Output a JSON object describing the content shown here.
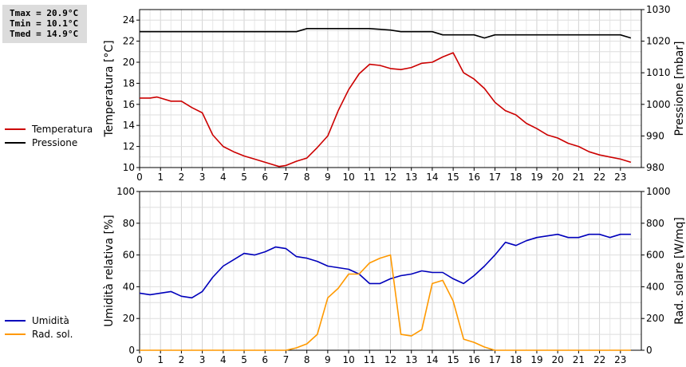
{
  "stats": {
    "tmax": "Tmax = 20.9°C",
    "tmin": "Tmin = 10.1°C",
    "tmed": "Tmed = 14.9°C"
  },
  "chart_data": [
    {
      "type": "line",
      "ylabel": "Temperatura [°C]",
      "y2label": "Pressione [mbar]",
      "x_ticks": [
        "0",
        "1",
        "2",
        "3",
        "4",
        "5",
        "6",
        "7",
        "8",
        "9",
        "10",
        "11",
        "12",
        "13",
        "14",
        "15",
        "16",
        "17",
        "18",
        "19",
        "20",
        "21",
        "22",
        "23"
      ],
      "y_ticks": [
        "10",
        "12",
        "14",
        "16",
        "18",
        "20",
        "22",
        "24"
      ],
      "y2_ticks": [
        "980",
        "990",
        "1000",
        "1010",
        "1020",
        "1030"
      ],
      "xlim": [
        0,
        24
      ],
      "ylim": [
        10,
        25
      ],
      "y2lim": [
        980,
        1030
      ],
      "grid": true,
      "series": [
        {
          "name": "Temperatura",
          "axis": "left",
          "color": "#cc0000",
          "x": [
            0,
            0.5,
            0.83,
            1,
            1.5,
            2,
            2.5,
            3,
            3.5,
            4,
            4.5,
            5,
            5.5,
            6,
            6.5,
            6.67,
            7,
            7.5,
            8,
            8.5,
            9,
            9.5,
            10,
            10.5,
            11,
            11.5,
            12,
            12.5,
            13,
            13.5,
            14,
            14.5,
            15,
            15.5,
            16,
            16.5,
            17,
            17.5,
            18,
            18.5,
            19,
            19.5,
            20,
            20.5,
            21,
            21.5,
            22,
            22.5,
            23,
            23.5
          ],
          "values": [
            16.6,
            16.6,
            16.7,
            16.6,
            16.3,
            16.3,
            15.7,
            15.2,
            13.1,
            12.0,
            11.5,
            11.1,
            10.8,
            10.5,
            10.2,
            10.1,
            10.2,
            10.6,
            10.9,
            11.9,
            13.0,
            15.4,
            17.4,
            18.9,
            19.8,
            19.7,
            19.4,
            19.3,
            19.5,
            19.9,
            20.0,
            20.5,
            20.9,
            19.0,
            18.4,
            17.5,
            16.2,
            15.4,
            15.0,
            14.2,
            13.7,
            13.1,
            12.8,
            12.3,
            12.0,
            11.5,
            11.2,
            11.0,
            10.8,
            10.5
          ]
        },
        {
          "name": "Pressione",
          "axis": "right",
          "color": "#000000",
          "x": [
            0,
            7.5,
            8,
            11,
            12,
            12.5,
            14,
            14.5,
            16,
            16.5,
            17,
            23,
            23.5
          ],
          "values": [
            1023,
            1023,
            1024,
            1024,
            1023.5,
            1023,
            1023,
            1022,
            1022,
            1021,
            1022,
            1022,
            1021
          ]
        }
      ]
    },
    {
      "type": "line",
      "ylabel": "Umidità relativa [%]",
      "y2label": "Rad. solare [W/mq]",
      "x_ticks": [
        "0",
        "1",
        "2",
        "3",
        "4",
        "5",
        "6",
        "7",
        "8",
        "9",
        "10",
        "11",
        "12",
        "13",
        "14",
        "15",
        "16",
        "17",
        "18",
        "19",
        "20",
        "21",
        "22",
        "23"
      ],
      "y_ticks": [
        "0",
        "20",
        "40",
        "60",
        "80",
        "100"
      ],
      "y2_ticks": [
        "0",
        "200",
        "400",
        "600",
        "800",
        "1000"
      ],
      "xlim": [
        0,
        24
      ],
      "ylim": [
        0,
        100
      ],
      "y2lim": [
        0,
        1000
      ],
      "grid": true,
      "series": [
        {
          "name": "Umidità",
          "axis": "left",
          "color": "#0000bb",
          "x": [
            0,
            0.5,
            1,
            1.5,
            2,
            2.5,
            3,
            3.5,
            4,
            4.5,
            5,
            5.5,
            6,
            6.5,
            7,
            7.5,
            8,
            8.5,
            9,
            9.5,
            10,
            10.5,
            11,
            11.5,
            12,
            12.5,
            13,
            13.5,
            14,
            14.5,
            15,
            15.5,
            16,
            16.5,
            17,
            17.5,
            18,
            18.5,
            19,
            19.5,
            20,
            20.5,
            21,
            21.5,
            22,
            22.5,
            23,
            23.5
          ],
          "values": [
            36,
            35,
            36,
            37,
            34,
            33,
            37,
            46,
            53,
            57,
            61,
            60,
            62,
            65,
            64,
            59,
            58,
            56,
            53,
            52,
            51,
            48,
            42,
            42,
            45,
            47,
            48,
            50,
            49,
            49,
            45,
            42,
            47,
            53,
            60,
            68,
            66,
            69,
            71,
            72,
            73,
            71,
            71,
            73,
            73,
            71,
            73,
            73
          ]
        },
        {
          "name": "Rad. sol.",
          "axis": "right",
          "color": "#ff9900",
          "x": [
            0,
            7,
            7.5,
            8,
            8.5,
            9,
            9.5,
            10,
            10.5,
            11,
            11.5,
            12,
            12.5,
            13,
            13.5,
            14,
            14.5,
            15,
            15.5,
            16,
            16.5,
            17,
            23.5
          ],
          "values": [
            0,
            0,
            15,
            40,
            100,
            330,
            390,
            480,
            480,
            550,
            580,
            600,
            100,
            90,
            130,
            420,
            440,
            310,
            70,
            50,
            20,
            0,
            0
          ]
        }
      ]
    }
  ]
}
